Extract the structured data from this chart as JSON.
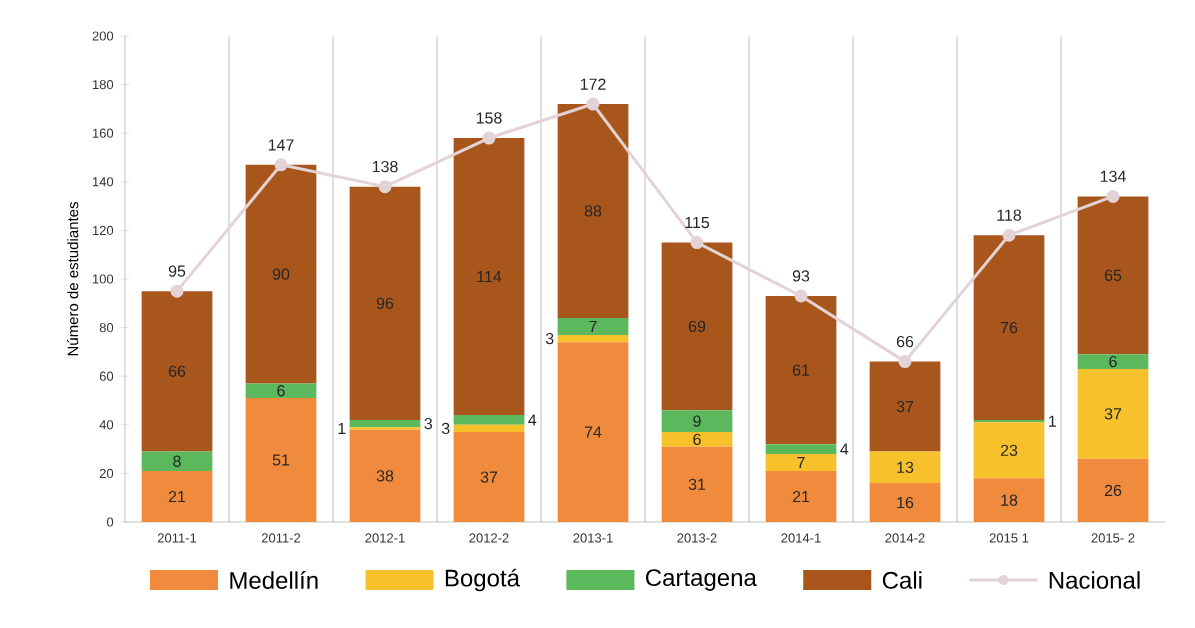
{
  "chart_data": {
    "type": "bar",
    "stacked": true,
    "ylabel": "Número de estudiantes",
    "categories": [
      "2011-1",
      "2011-2",
      "2012-1",
      "2012-2",
      "2013-1",
      "2013-2",
      "2014-1",
      "2014-2",
      "2015 1",
      "2015- 2"
    ],
    "series": [
      {
        "name": "Medellín",
        "color": "#f08a3c",
        "values": [
          21,
          51,
          38,
          37,
          74,
          31,
          21,
          16,
          18,
          26
        ],
        "value_labels": [
          "21",
          "51",
          "38",
          "37",
          "74",
          "31",
          "21",
          "16",
          "18",
          "26"
        ]
      },
      {
        "name": "Bogotá",
        "color": "#f7c12c",
        "values": [
          0,
          0,
          1,
          3,
          3,
          6,
          7,
          13,
          23,
          37
        ],
        "value_labels": [
          null,
          null,
          "1",
          "3",
          "3",
          "6",
          "7",
          "13",
          "23",
          "37"
        ]
      },
      {
        "name": "Cartagena",
        "color": "#5cb85c",
        "values": [
          8,
          6,
          3,
          4,
          7,
          9,
          4,
          0,
          1,
          6
        ],
        "value_labels": [
          "8",
          "6",
          "3",
          "4",
          "7",
          "9",
          "4",
          null,
          "1",
          "6"
        ]
      },
      {
        "name": "Cali",
        "color": "#a8561c",
        "values": [
          66,
          90,
          96,
          114,
          88,
          69,
          61,
          37,
          76,
          65
        ],
        "value_labels": [
          "66",
          "90",
          "96",
          "114",
          "88",
          "69",
          "61",
          "37",
          "76",
          "65"
        ]
      },
      {
        "name": "Nacional",
        "type": "line",
        "color": "#e3d3d7",
        "marker": "circle",
        "line_style": "solid",
        "values": [
          95,
          147,
          138,
          158,
          172,
          115,
          93,
          66,
          118,
          134
        ],
        "value_labels": [
          "95",
          "147",
          "138",
          "158",
          "172",
          "115",
          "93",
          "66",
          "118",
          "134"
        ]
      }
    ],
    "ylim": [
      0,
      200
    ],
    "yticks": [
      0,
      20,
      40,
      60,
      80,
      100,
      120,
      140,
      160,
      180,
      200
    ],
    "grid": "x",
    "legend": "bottom"
  }
}
